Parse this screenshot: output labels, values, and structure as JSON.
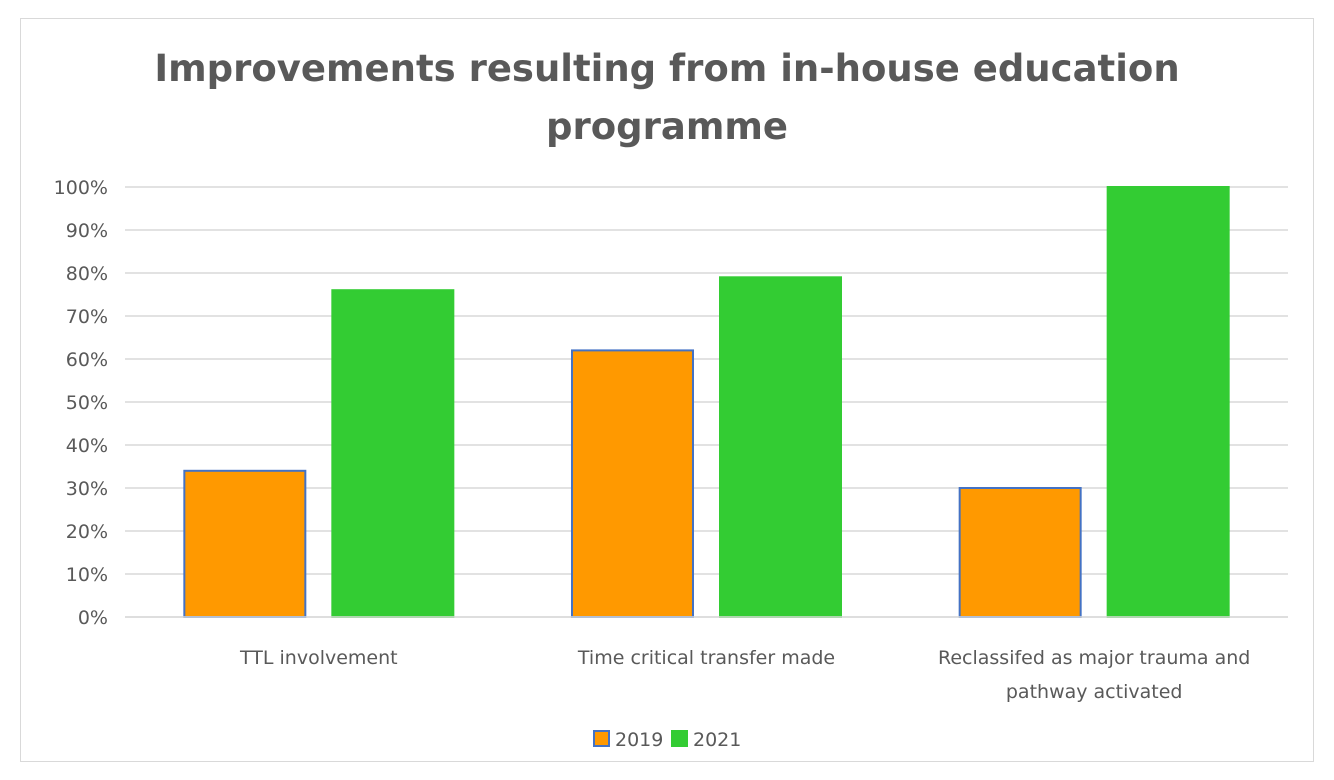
{
  "chart_data": {
    "type": "bar",
    "title_lines": [
      "Improvements resulting from in-house education",
      "programme"
    ],
    "categories": [
      [
        "TTL involvement"
      ],
      [
        "Time critical transfer made"
      ],
      [
        "Reclassifed as major trauma and",
        "pathway activated"
      ]
    ],
    "series": [
      {
        "name": "2019",
        "values": [
          34,
          62,
          30
        ],
        "color": "#ff9900",
        "border": "#4472c4"
      },
      {
        "name": "2021",
        "values": [
          76,
          79,
          100
        ],
        "color": "#33cc33",
        "border": "#33cc33"
      }
    ],
    "ylim": [
      0,
      100
    ],
    "yticks": [
      0,
      10,
      20,
      30,
      40,
      50,
      60,
      70,
      80,
      90,
      100
    ],
    "ytick_suffix": "%",
    "grid": true,
    "legend_position": "bottom"
  }
}
